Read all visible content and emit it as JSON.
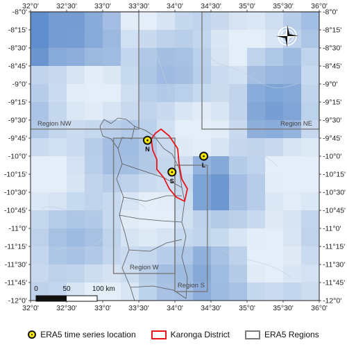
{
  "map": {
    "x_ticks": [
      "32°0'",
      "32°30'",
      "33°0'",
      "33°30'",
      "34°0'",
      "34°30'",
      "35°0'",
      "35°30'",
      "36°0'"
    ],
    "y_ticks": [
      "-8°0'",
      "-8°15'",
      "-8°30'",
      "-8°45'",
      "-9°0'",
      "-9°15'",
      "-9°30'",
      "-9°45'",
      "-10°0'",
      "-10°15'",
      "-10°30'",
      "-10°45'",
      "-11°0'",
      "-11°15'",
      "-11°30'",
      "-11°45'",
      "-12°0'"
    ],
    "lon_range": [
      32.0,
      36.0
    ],
    "lat_range": [
      -8.0,
      -12.0
    ],
    "regions": [
      {
        "label": "Region NW",
        "lon": [
          32.0,
          33.5
        ],
        "lat": [
          -8.0,
          -9.625
        ]
      },
      {
        "label": "Region NE",
        "lon": [
          34.375,
          36.0
        ],
        "lat": [
          -8.0,
          -9.625
        ]
      },
      {
        "label": "Region W",
        "lon": [
          33.15,
          34.0
        ],
        "lat": [
          -9.75,
          -11.625
        ]
      },
      {
        "label": "Region S",
        "lon": [
          34.0,
          34.45
        ],
        "lat": [
          -10.125,
          -11.875
        ]
      }
    ],
    "locations": [
      {
        "label": "N",
        "lon": 33.62,
        "lat": -9.78
      },
      {
        "label": "S",
        "lon": 33.96,
        "lat": -10.22
      },
      {
        "label": "L",
        "lon": 34.4,
        "lat": -10.0
      }
    ],
    "scale_bar": {
      "labels": [
        "0",
        "50",
        "100 km"
      ]
    },
    "colors": {
      "location_fill": "#f5e600",
      "district_border": "#e8141a",
      "region_border": "#7a7a7a"
    }
  },
  "legend": {
    "items": [
      {
        "label": "ERA5 time series location"
      },
      {
        "label": "Karonga District"
      },
      {
        "label": "ERA5 Regions"
      }
    ]
  }
}
